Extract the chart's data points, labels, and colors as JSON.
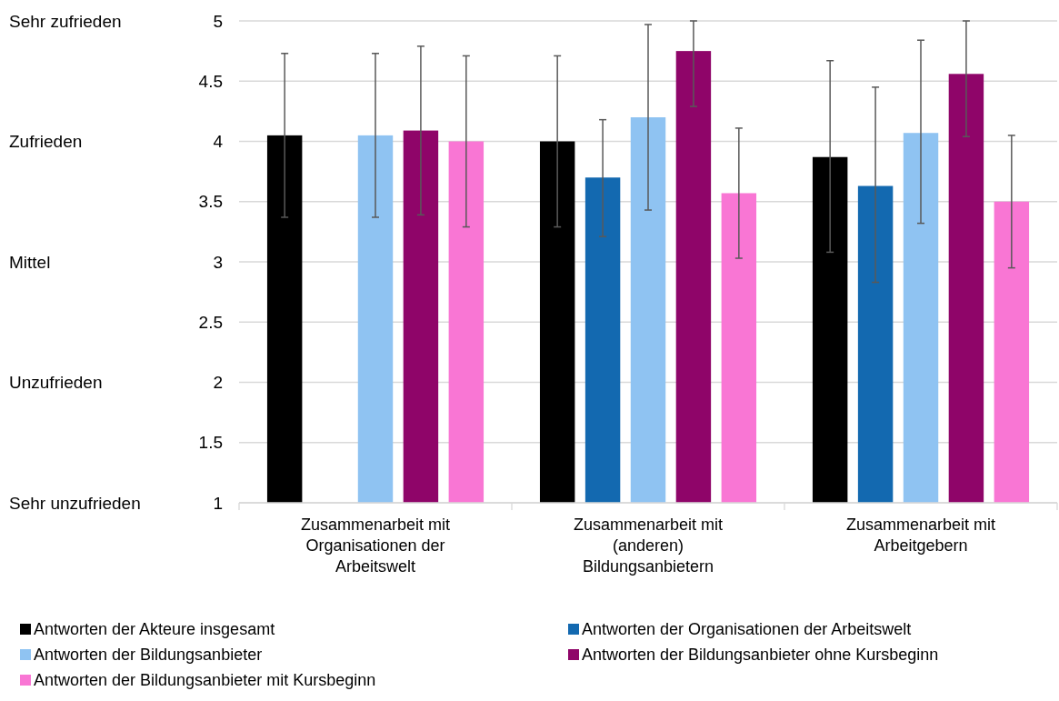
{
  "chart_data": {
    "type": "bar",
    "categories": [
      "Zusammenarbeit mit Organisationen der Arbeitswelt",
      "Zusammenarbeit mit (anderen) Bildungsanbietern",
      "Zusammenarbeit mit Arbeitgebern"
    ],
    "series": [
      {
        "name": "Antworten der Akteure insgesamt",
        "color": "#000000",
        "values": [
          4.05,
          4.0,
          3.87
        ],
        "errors": [
          [
            3.37,
            4.73
          ],
          [
            3.29,
            4.71
          ],
          [
            3.08,
            4.67
          ]
        ]
      },
      {
        "name": "Antworten der Organisationen der Arbeitswelt",
        "color": "#1369b0",
        "values": [
          null,
          3.7,
          3.63
        ],
        "errors": [
          null,
          [
            3.21,
            4.18
          ],
          [
            2.83,
            4.45
          ]
        ]
      },
      {
        "name": "Antworten der Bildungsanbieter",
        "color": "#8fc3f2",
        "values": [
          4.05,
          4.2,
          4.07
        ],
        "errors": [
          [
            3.37,
            4.73
          ],
          [
            3.43,
            4.97
          ],
          [
            3.32,
            4.84
          ]
        ]
      },
      {
        "name": "Antworten der Bildungsanbieter ohne Kursbeginn",
        "color": "#8f0569",
        "values": [
          4.09,
          4.75,
          4.56
        ],
        "errors": [
          [
            3.39,
            4.79
          ],
          [
            4.29,
            5.0
          ],
          [
            4.04,
            5.0
          ]
        ]
      },
      {
        "name": "Antworten der Bildungsanbieter mit Kursbeginn",
        "color": "#f976d4",
        "values": [
          4.0,
          3.57,
          3.5
        ],
        "errors": [
          [
            3.29,
            4.71
          ],
          [
            3.03,
            4.11
          ],
          [
            2.95,
            4.05
          ]
        ]
      }
    ],
    "ylim": [
      1,
      5
    ],
    "yticks": [
      1,
      1.5,
      2,
      2.5,
      3,
      3.5,
      4,
      4.5,
      5
    ],
    "annotations": [
      "Sehr zufrieden",
      "Zufrieden",
      "Mittel",
      "Unzufrieden",
      "Sehr unzufrieden"
    ],
    "grid": "y",
    "legend": "bottom"
  }
}
